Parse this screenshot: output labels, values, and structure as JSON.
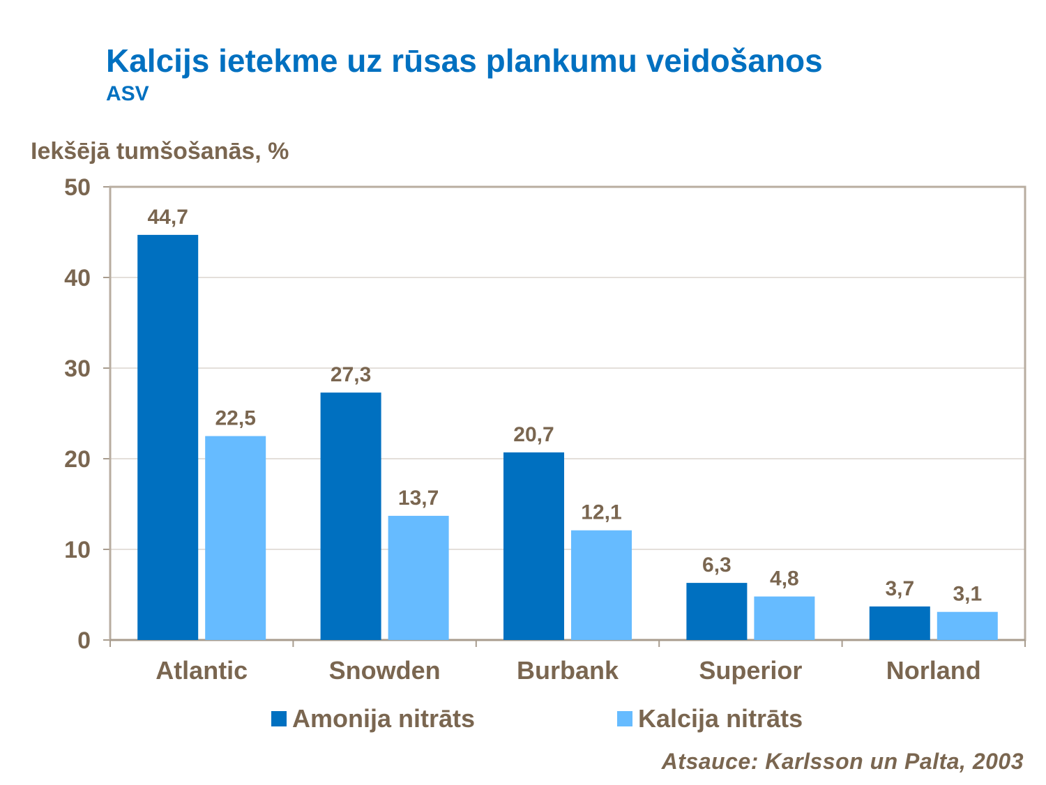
{
  "chart_data": {
    "type": "bar",
    "title": "Kalcijs ietekme uz rūsas plankumu veidošanos",
    "subtitle": "ASV",
    "ylabel": "Iekšējā tumšošanās, %",
    "xlabel": "",
    "ylim": [
      0,
      50
    ],
    "yticks": [
      0,
      10,
      20,
      30,
      40,
      50
    ],
    "grid": true,
    "legend_position": "bottom",
    "categories": [
      "Atlantic",
      "Snowden",
      "Burbank",
      "Superior",
      "Norland"
    ],
    "series": [
      {
        "name": "Amonija nitrāts",
        "color": "#0070C0",
        "values": [
          44.7,
          27.3,
          20.7,
          6.3,
          3.7
        ],
        "labels": [
          "44,7",
          "27,3",
          "20,7",
          "6,3",
          "3,7"
        ]
      },
      {
        "name": "Kalcija nitrāts",
        "color": "#66BBFF",
        "values": [
          22.5,
          13.7,
          12.1,
          4.8,
          3.1
        ],
        "labels": [
          "22,5",
          "13,7",
          "12,1",
          "4,8",
          "3,1"
        ]
      }
    ],
    "source": "Atsauce: Karlsson un Palta, 2003"
  }
}
